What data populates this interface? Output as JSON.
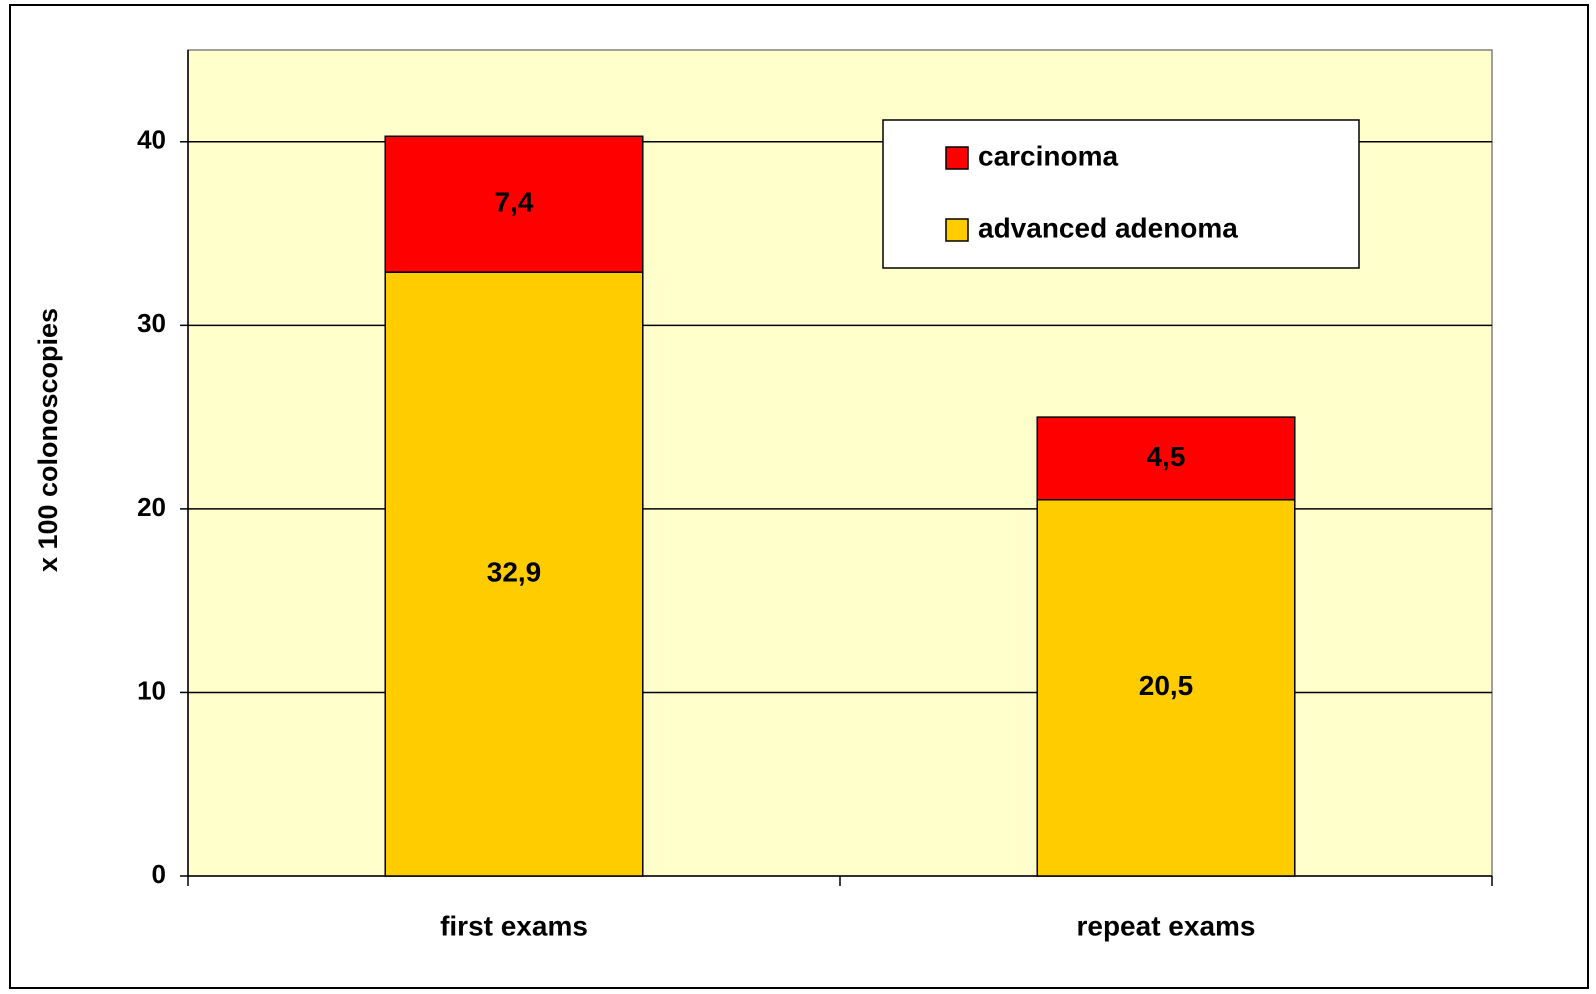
{
  "chart_data": {
    "type": "stacked_bar",
    "ylabel": "x 100 colonoscopies",
    "categories": [
      "first exams",
      "repeat exams"
    ],
    "series": [
      {
        "name": "advanced adenoma",
        "color": "#ffcc00",
        "values": [
          32.9,
          20.5
        ],
        "value_labels": [
          "32,9",
          "20,5"
        ]
      },
      {
        "name": "carcinoma",
        "color": "#ff0000",
        "values": [
          7.4,
          4.5
        ],
        "value_labels": [
          "7,4",
          "4,5"
        ]
      }
    ],
    "ylim": [
      0,
      45
    ],
    "yticks": [
      0,
      10,
      20,
      30,
      40
    ],
    "grid": true,
    "legend": "upper right",
    "plot_background": "#ffffcc"
  }
}
